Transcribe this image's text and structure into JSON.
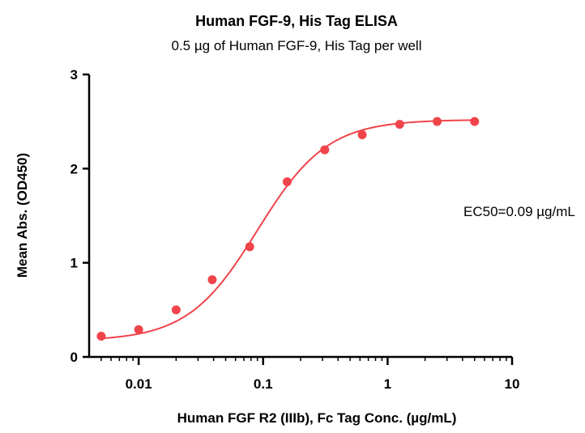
{
  "chart_data": {
    "type": "scatter",
    "title": "Human FGF-9, His Tag ELISA",
    "subtitle": "0.5 µg of Human FGF-9, His Tag per well",
    "xlabel": "Human FGF R2 (IIIb), Fc Tag Conc. (µg/mL)",
    "ylabel": "Mean Abs. (OD450)",
    "x_scale": "log",
    "xlim": [
      0.004,
      10
    ],
    "ylim": [
      0,
      3
    ],
    "x_ticks": [
      {
        "value": 0.01,
        "label": "0.01"
      },
      {
        "value": 0.1,
        "label": "0.1"
      },
      {
        "value": 1,
        "label": "1"
      },
      {
        "value": 10,
        "label": "10"
      }
    ],
    "y_ticks": [
      {
        "value": 0,
        "label": "0"
      },
      {
        "value": 1,
        "label": "1"
      },
      {
        "value": 2,
        "label": "2"
      },
      {
        "value": 3,
        "label": "3"
      }
    ],
    "grid": false,
    "color": "#f0444a",
    "points": [
      {
        "x": 0.005,
        "y": 0.22
      },
      {
        "x": 0.01,
        "y": 0.29
      },
      {
        "x": 0.02,
        "y": 0.5
      },
      {
        "x": 0.039,
        "y": 0.82
      },
      {
        "x": 0.078,
        "y": 1.17
      },
      {
        "x": 0.156,
        "y": 1.86
      },
      {
        "x": 0.3125,
        "y": 2.2
      },
      {
        "x": 0.625,
        "y": 2.36
      },
      {
        "x": 1.25,
        "y": 2.47
      },
      {
        "x": 2.5,
        "y": 2.5
      },
      {
        "x": 5,
        "y": 2.5
      }
    ],
    "fit": {
      "bottom": 0.17,
      "top": 2.52,
      "ec50": 0.09,
      "hill": 1.55
    },
    "annotation": "EC50=0.09 µg/mL"
  }
}
